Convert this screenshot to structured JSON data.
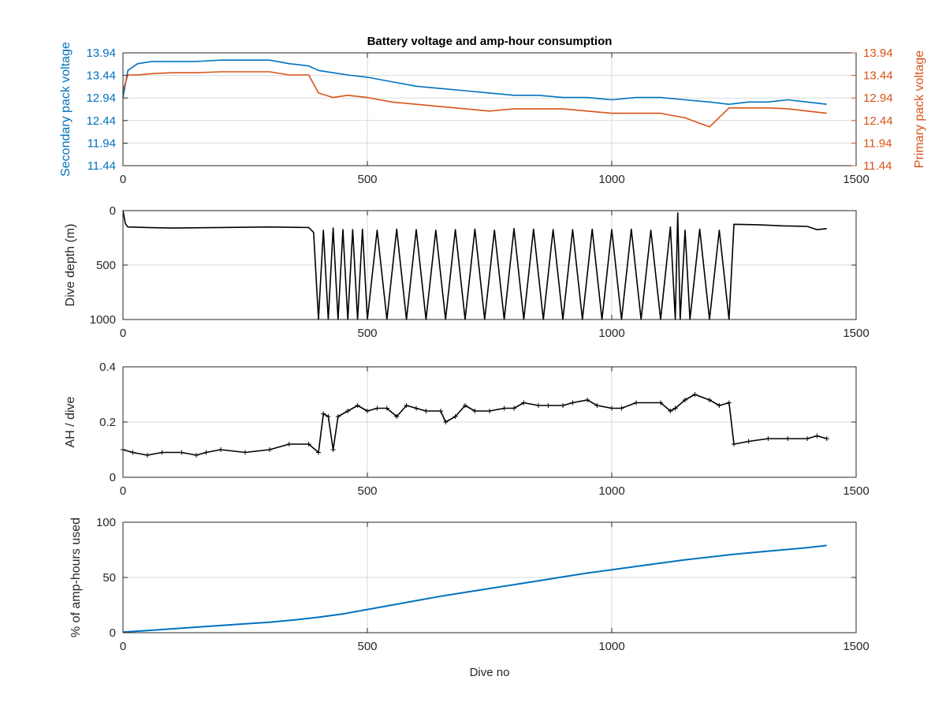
{
  "title": "Battery voltage and amp-hour consumption",
  "colors": {
    "secondary": "#0072BD",
    "primary": "#D95319",
    "black": "#000000",
    "cumulative": "#0072BD",
    "grid": "#DADADA"
  },
  "chart_data": [
    {
      "type": "line",
      "title": "Battery voltage and amp-hour consumption",
      "xlabel": "",
      "ylabel_left": "Secondary pack voltage",
      "ylabel_right": "Primary pack voltage",
      "xlim": [
        0,
        1500
      ],
      "ylim": [
        11.44,
        13.94
      ],
      "xticks": [
        "0",
        "500",
        "1000",
        "1500"
      ],
      "yticks_left": [
        "11.44",
        "11.94",
        "12.44",
        "12.94",
        "13.44",
        "13.94"
      ],
      "yticks_right": [
        "11.44",
        "11.94",
        "12.44",
        "12.94",
        "13.44",
        "13.94"
      ],
      "grid": true,
      "series": [
        {
          "name": "Secondary pack voltage",
          "axis": "left",
          "x": [
            0,
            10,
            30,
            60,
            100,
            150,
            200,
            250,
            300,
            340,
            380,
            400,
            430,
            460,
            500,
            550,
            600,
            650,
            700,
            750,
            800,
            850,
            900,
            950,
            1000,
            1050,
            1100,
            1150,
            1200,
            1240,
            1280,
            1320,
            1360,
            1400,
            1440
          ],
          "values": [
            12.95,
            13.55,
            13.7,
            13.75,
            13.75,
            13.75,
            13.78,
            13.78,
            13.78,
            13.7,
            13.65,
            13.55,
            13.5,
            13.45,
            13.4,
            13.3,
            13.2,
            13.15,
            13.1,
            13.05,
            13.0,
            13.0,
            12.95,
            12.95,
            12.9,
            12.95,
            12.95,
            12.9,
            12.85,
            12.8,
            12.85,
            12.85,
            12.9,
            12.85,
            12.8
          ]
        },
        {
          "name": "Primary pack voltage",
          "axis": "right",
          "x": [
            0,
            10,
            30,
            60,
            100,
            150,
            200,
            250,
            300,
            340,
            380,
            400,
            430,
            460,
            500,
            550,
            600,
            650,
            700,
            750,
            800,
            850,
            900,
            950,
            1000,
            1050,
            1100,
            1150,
            1200,
            1240,
            1280,
            1320,
            1360,
            1400,
            1440
          ],
          "values": [
            13.1,
            13.45,
            13.45,
            13.48,
            13.5,
            13.5,
            13.52,
            13.52,
            13.52,
            13.45,
            13.45,
            13.05,
            12.95,
            13.0,
            12.95,
            12.85,
            12.8,
            12.75,
            12.7,
            12.65,
            12.7,
            12.7,
            12.7,
            12.65,
            12.6,
            12.6,
            12.6,
            12.5,
            12.3,
            12.72,
            12.72,
            12.72,
            12.7,
            12.65,
            12.6
          ]
        }
      ]
    },
    {
      "type": "line",
      "xlabel": "",
      "ylabel": "Dive depth (m)",
      "xlim": [
        0,
        1500
      ],
      "ylim": [
        0,
        1000
      ],
      "y_reversed": true,
      "xticks": [
        "0",
        "500",
        "1000",
        "1500"
      ],
      "yticks": [
        "0",
        "500",
        "1000"
      ],
      "grid": true,
      "series": [
        {
          "x": [
            0,
            5,
            10,
            50,
            100,
            200,
            300,
            380,
            390,
            400,
            410,
            420,
            430,
            440,
            450,
            460,
            470,
            480,
            490,
            500,
            520,
            540,
            560,
            580,
            600,
            620,
            640,
            660,
            680,
            700,
            720,
            740,
            760,
            780,
            800,
            820,
            840,
            860,
            880,
            900,
            920,
            940,
            960,
            980,
            1000,
            1020,
            1040,
            1060,
            1080,
            1100,
            1120,
            1130,
            1135,
            1140,
            1150,
            1160,
            1180,
            1200,
            1220,
            1240,
            1250,
            1300,
            1350,
            1400,
            1420,
            1440
          ],
          "values": [
            0,
            120,
            150,
            155,
            160,
            155,
            150,
            155,
            200,
            1000,
            180,
            1000,
            160,
            1000,
            175,
            1000,
            175,
            1000,
            170,
            1000,
            180,
            1000,
            170,
            1000,
            175,
            1000,
            180,
            1000,
            175,
            1000,
            170,
            1000,
            180,
            1000,
            165,
            1000,
            170,
            1000,
            175,
            1000,
            175,
            1000,
            170,
            1000,
            175,
            1000,
            170,
            1000,
            180,
            1000,
            150,
            1000,
            20,
            1000,
            180,
            1000,
            170,
            1000,
            180,
            1000,
            125,
            130,
            140,
            145,
            175,
            165
          ]
        }
      ]
    },
    {
      "type": "line",
      "xlabel": "",
      "ylabel": "AH / dive",
      "xlim": [
        0,
        1500
      ],
      "ylim": [
        0,
        0.4
      ],
      "xticks": [
        "0",
        "500",
        "1000",
        "1500"
      ],
      "yticks": [
        "0",
        "0.2",
        "0.4"
      ],
      "grid": true,
      "series": [
        {
          "x": [
            0,
            20,
            50,
            80,
            120,
            150,
            170,
            200,
            250,
            300,
            340,
            380,
            400,
            410,
            420,
            430,
            440,
            460,
            480,
            500,
            520,
            540,
            560,
            580,
            600,
            620,
            650,
            660,
            680,
            700,
            720,
            750,
            780,
            800,
            820,
            850,
            870,
            900,
            920,
            950,
            970,
            1000,
            1020,
            1050,
            1100,
            1120,
            1130,
            1150,
            1170,
            1200,
            1220,
            1240,
            1250,
            1280,
            1320,
            1360,
            1400,
            1420,
            1440
          ],
          "values": [
            0.1,
            0.09,
            0.08,
            0.09,
            0.09,
            0.08,
            0.09,
            0.1,
            0.09,
            0.1,
            0.12,
            0.12,
            0.09,
            0.23,
            0.22,
            0.1,
            0.22,
            0.24,
            0.26,
            0.24,
            0.25,
            0.25,
            0.22,
            0.26,
            0.25,
            0.24,
            0.24,
            0.2,
            0.22,
            0.26,
            0.24,
            0.24,
            0.25,
            0.25,
            0.27,
            0.26,
            0.26,
            0.26,
            0.27,
            0.28,
            0.26,
            0.25,
            0.25,
            0.27,
            0.27,
            0.24,
            0.25,
            0.28,
            0.3,
            0.28,
            0.26,
            0.27,
            0.12,
            0.13,
            0.14,
            0.14,
            0.14,
            0.15,
            0.14
          ]
        }
      ]
    },
    {
      "type": "line",
      "xlabel": "Dive no",
      "ylabel": "% of amp-hours used",
      "xlim": [
        0,
        1500
      ],
      "ylim": [
        0,
        100
      ],
      "xticks": [
        "0",
        "500",
        "1000",
        "1500"
      ],
      "yticks": [
        "0",
        "50",
        "100"
      ],
      "grid": true,
      "series": [
        {
          "x": [
            0,
            50,
            100,
            150,
            200,
            250,
            300,
            350,
            400,
            450,
            500,
            550,
            600,
            650,
            700,
            750,
            800,
            850,
            900,
            950,
            1000,
            1050,
            1100,
            1150,
            1200,
            1250,
            1300,
            1350,
            1400,
            1440
          ],
          "values": [
            0.5,
            2,
            3.5,
            5,
            6.5,
            8,
            9.5,
            11.5,
            14,
            17,
            21,
            25,
            29,
            33,
            36.5,
            40,
            43.5,
            47,
            50.5,
            54,
            57,
            60,
            63,
            66,
            68.5,
            71,
            73,
            75,
            77,
            79
          ]
        }
      ]
    }
  ]
}
